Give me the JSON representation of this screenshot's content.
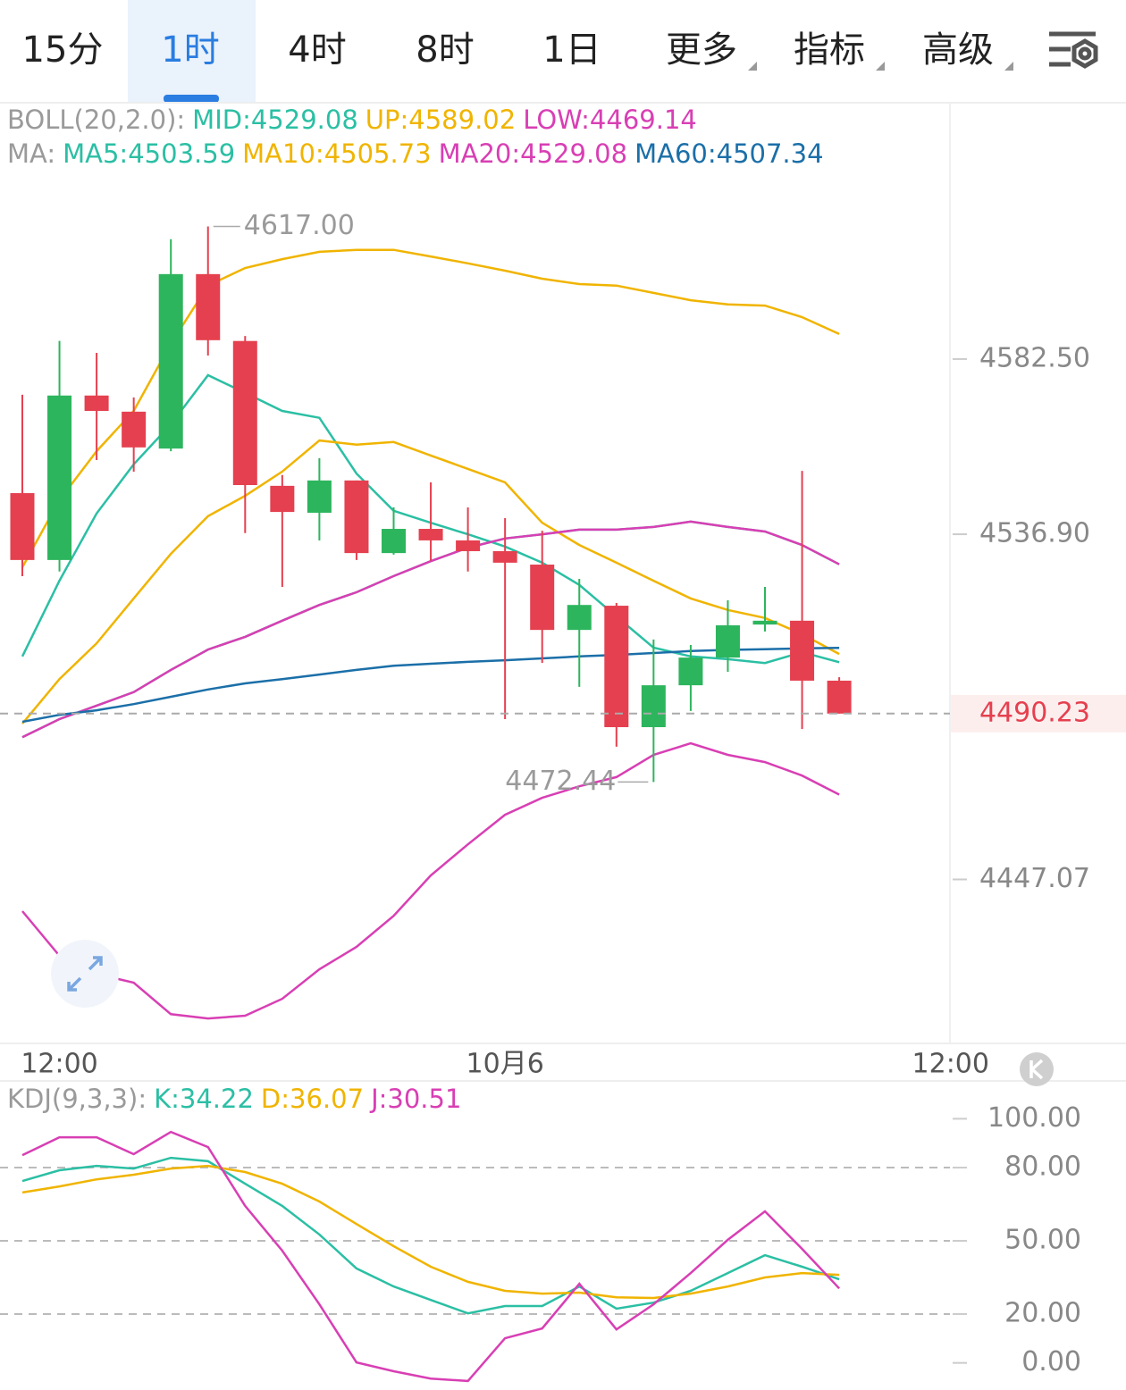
{
  "tabs": [
    {
      "label": "15分"
    },
    {
      "label": "1时",
      "active": true
    },
    {
      "label": "4时"
    },
    {
      "label": "8时"
    },
    {
      "label": "1日"
    },
    {
      "label": "更多",
      "menu": true
    },
    {
      "label": "指标",
      "menu": true
    },
    {
      "label": "高级",
      "menu": true
    }
  ],
  "chart_data": [
    {
      "type": "candlestick",
      "up_color": "#2db55d",
      "down_color": "#e5404f",
      "categories": [
        null,
        "12:00",
        null,
        null,
        null,
        null,
        null,
        null,
        null,
        null,
        null,
        null,
        null,
        "10月6",
        null,
        null,
        null,
        null,
        null,
        null,
        null,
        null,
        null,
        null,
        null,
        "12:00"
      ],
      "open": [
        4547.6,
        4530.2,
        4573.0,
        4568.8,
        4559.2,
        4604.6,
        4587.2,
        4549.5,
        4542.5,
        4550.9,
        4532.0,
        4538.3,
        4535.3,
        4532.5,
        4529.0,
        4512.0,
        4518.3,
        4486.7,
        4497.6,
        4504.8,
        4513.4,
        4514.4,
        4498.8,
        null,
        null,
        null
      ],
      "high": [
        4573.2,
        4587.2,
        4584.1,
        4572.5,
        4613.7,
        4617,
        4588.5,
        4552.3,
        4556.7,
        4550.9,
        4543.9,
        4550.4,
        4543.9,
        4541.1,
        4537.8,
        4525.3,
        4519.0,
        4509.5,
        4508.1,
        4519.7,
        4523.2,
        4553.4,
        4499.7,
        null,
        null,
        null
      ],
      "low": [
        4526.0,
        4527.2,
        4556.2,
        4553.2,
        4558.5,
        4583.4,
        4537.2,
        4523.2,
        4535.3,
        4530.2,
        4531.6,
        4530.0,
        4527.2,
        4488.8,
        4503.4,
        4497.2,
        4481.6,
        4472.44,
        4490.9,
        4501.1,
        4511.6,
        4486.2,
        4490.23,
        null,
        null,
        null
      ],
      "close": [
        4530.2,
        4573.0,
        4569.0,
        4559.5,
        4604.6,
        4587.4,
        4549.7,
        4542.7,
        4550.9,
        4532.0,
        4538.3,
        4535.3,
        4532.5,
        4529.5,
        4512.0,
        4518.5,
        4486.7,
        4497.6,
        4504.8,
        4513.2,
        4514.4,
        4498.8,
        4490.23,
        null,
        null,
        null
      ],
      "legends": [
        {
          "title": "BOLL(20,2.0):",
          "items": [
            {
              "name": "MID:",
              "color": "#2bbfa4",
              "values": [
                4484.1,
                4488.8,
                4492.3,
                4495.8,
                4501.6,
                4506.9,
                4510.2,
                4514.4,
                4518.5,
                4521.8,
                4526.0,
                4529.9,
                4533.4,
                4535.8,
                4536.9,
                4538.1,
                4538.1,
                4538.8,
                4540.2,
                4538.8,
                4537.6,
                4534.1,
                4529.08,
                null,
                null,
                null
              ]
            },
            {
              "name": "UP:",
              "color": "#f0b400",
              "values": [
                4528.3,
                4545.8,
                4558.5,
                4569.0,
                4586.5,
                4601.6,
                4606.2,
                4608.5,
                4610.4,
                4610.9,
                4610.9,
                4609.2,
                4607.4,
                4605.5,
                4603.4,
                4602.0,
                4601.6,
                4599.7,
                4597.8,
                4596.7,
                4596.4,
                4593.4,
                4589.02,
                null,
                null,
                null
              ]
            },
            {
              "name": "LOW:",
              "color": "#d83fb4",
              "values": [
                4438.8,
                4427.2,
                4422.5,
                4420.2,
                4412.0,
                4410.9,
                4411.6,
                4416.0,
                4423.7,
                4429.5,
                4437.6,
                4448.1,
                4456.2,
                4463.9,
                4468.3,
                4471.3,
                4473.7,
                4479.5,
                4482.5,
                4479.5,
                4477.6,
                4474.1,
                4469.14,
                null,
                null,
                null
              ]
            }
          ]
        },
        {
          "title": "MA:",
          "items": [
            {
              "name": "MA5:",
              "color": "#2bbfa4",
              "values": [
                4505.1,
                4524.8,
                4542.3,
                4555.1,
                4565.5,
                4578.3,
                4573.7,
                4569.0,
                4567.2,
                4552.7,
                4543.0,
                4539.9,
                4536.9,
                4533.7,
                4529.5,
                4523.7,
                4515.5,
                4507.4,
                4505.1,
                4504.4,
                4503.4,
                4506.2,
                4503.59,
                null,
                null,
                null
              ]
            },
            {
              "name": "MA10:",
              "color": "#f0b400",
              "values": [
                4487.6,
                4499.2,
                4508.5,
                4520.2,
                4531.8,
                4541.6,
                4546.9,
                4553.2,
                4561.3,
                4560.2,
                4560.9,
                4557.4,
                4553.9,
                4550.4,
                4539.9,
                4534.1,
                4529.5,
                4524.8,
                4520.2,
                4517.2,
                4515.1,
                4510.9,
                4505.73,
                null,
                null,
                null
              ]
            },
            {
              "name": "MA20:",
              "color": "#d83fb4",
              "values": [
                4484.1,
                4488.8,
                4492.3,
                4495.8,
                4501.6,
                4506.9,
                4510.2,
                4514.4,
                4518.5,
                4521.8,
                4526.0,
                4529.9,
                4533.4,
                4535.8,
                4536.9,
                4538.1,
                4538.1,
                4538.8,
                4540.2,
                4538.8,
                4537.6,
                4534.1,
                4529.08,
                null,
                null,
                null
              ]
            },
            {
              "name": "MA60:",
              "color": "#1b6fa8",
              "values": [
                4488.1,
                4489.9,
                4491.1,
                4492.7,
                4494.6,
                4496.5,
                4498.1,
                4499.2,
                4500.4,
                4501.6,
                4502.7,
                4503.2,
                4503.7,
                4504.1,
                4504.6,
                4505.1,
                4505.5,
                4506.0,
                4506.5,
                4506.8,
                4507.0,
                4507.2,
                4507.34,
                null,
                null,
                null
              ]
            }
          ]
        }
      ],
      "ylim": [
        4405.1,
        4630.6
      ],
      "yticks": [
        {
          "value": 4582.5,
          "label": "4582.50"
        },
        {
          "value": 4536.9,
          "label": "4536.90"
        },
        4447.07
      ],
      "last_price": 4490.23,
      "max_label": {
        "value": 4617,
        "label": "4617.00"
      },
      "min_label": 4472.44
    },
    {
      "type": "line",
      "legends": [
        {
          "title": "KDJ(9,3,3):",
          "items": [
            {
              "name": "K:",
              "color": "#2bbfa4",
              "values": [
                74.5,
                78.9,
                80.7,
                79.6,
                84.0,
                82.6,
                73.4,
                64.3,
                52.6,
                38.7,
                31.3,
                25.8,
                20.3,
                23.3,
                23.3,
                31.3,
                22.2,
                24.7,
                29.5,
                36.8,
                44.1,
                39.4,
                34.22
              ]
            },
            {
              "name": "D:",
              "color": "#f0b400",
              "values": [
                69.8,
                72.3,
                75.2,
                77.1,
                79.6,
                80.7,
                78.2,
                73.4,
                66.1,
                56.9,
                47.8,
                39.4,
                33.2,
                29.5,
                28.4,
                28.8,
                26.9,
                26.6,
                28.4,
                31.3,
                35.0,
                36.8,
                36.07
              ]
            },
            {
              "name": "J:",
              "color": "#d83fb4",
              "values": [
                85.1,
                92.4,
                92.4,
                85.5,
                94.6,
                88.4,
                64.3,
                46.0,
                24.0,
                0.2,
                -3.4,
                -6.4,
                -7.4,
                10.1,
                14.1,
                32.4,
                13.7,
                24.0,
                36.8,
                50.4,
                62.1,
                46.7,
                30.51
              ]
            }
          ]
        }
      ],
      "ylim": [
        -11.1,
        102.7
      ],
      "yticks": [
        {
          "value": 100,
          "label": "100.00"
        },
        {
          "value": 80,
          "label": "80.00"
        },
        {
          "value": 50,
          "label": "50.00"
        },
        {
          "value": 20,
          "label": "20.00"
        },
        {
          "value": 0,
          "label": "0.00"
        }
      ]
    }
  ]
}
